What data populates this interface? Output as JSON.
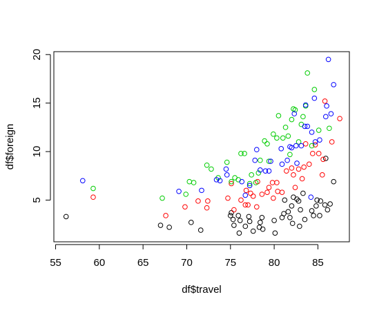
{
  "chart_data": {
    "type": "scatter",
    "title": "",
    "xlabel": "df$travel",
    "ylabel": "df$foreign",
    "xlim": [
      54.8,
      88.6
    ],
    "ylim": [
      0.7,
      20.3
    ],
    "x_ticks": [
      55,
      60,
      65,
      70,
      75,
      80,
      85
    ],
    "y_ticks": [
      5,
      10,
      15,
      20
    ],
    "x_tick_labels": [
      "55",
      "60",
      "65",
      "70",
      "75",
      "80",
      "85"
    ],
    "y_tick_labels": [
      "5",
      "10",
      "15",
      "20"
    ],
    "grid": false,
    "legend": "none",
    "marker": "open-circle",
    "series": [
      {
        "color": "#000000",
        "points": [
          [
            56.2,
            3.3
          ],
          [
            67.0,
            2.4
          ],
          [
            68.0,
            2.2
          ],
          [
            70.5,
            2.7
          ],
          [
            71.6,
            1.9
          ],
          [
            75.0,
            3.4
          ],
          [
            75.1,
            3.7
          ],
          [
            75.3,
            3.0
          ],
          [
            75.4,
            2.4
          ],
          [
            75.9,
            3.4
          ],
          [
            76.0,
            1.6
          ],
          [
            76.1,
            2.9
          ],
          [
            76.7,
            2.3
          ],
          [
            77.1,
            3.3
          ],
          [
            77.2,
            2.8
          ],
          [
            77.6,
            1.8
          ],
          [
            78.3,
            2.2
          ],
          [
            78.4,
            2.7
          ],
          [
            78.6,
            3.2
          ],
          [
            78.7,
            2.0
          ],
          [
            80.0,
            2.9
          ],
          [
            80.1,
            1.6
          ],
          [
            80.9,
            3.2
          ],
          [
            81.1,
            3.6
          ],
          [
            81.2,
            5.0
          ],
          [
            81.6,
            3.8
          ],
          [
            81.8,
            3.2
          ],
          [
            82.0,
            4.4
          ],
          [
            82.1,
            2.6
          ],
          [
            82.2,
            5.3
          ],
          [
            82.6,
            5.1
          ],
          [
            82.8,
            4.9
          ],
          [
            82.9,
            2.3
          ],
          [
            83.0,
            4.0
          ],
          [
            83.3,
            5.7
          ],
          [
            83.5,
            3.0
          ],
          [
            84.3,
            3.9
          ],
          [
            84.5,
            3.4
          ],
          [
            84.8,
            4.4
          ],
          [
            84.9,
            5.0
          ],
          [
            85.2,
            3.4
          ],
          [
            85.3,
            4.9
          ],
          [
            85.8,
            4.5
          ],
          [
            86.1,
            4.0
          ],
          [
            86.4,
            4.6
          ],
          [
            86.8,
            6.9
          ],
          [
            85.9,
            9.3
          ]
        ]
      },
      {
        "color": "#ff0000",
        "points": [
          [
            59.3,
            5.3
          ],
          [
            67.6,
            3.4
          ],
          [
            69.8,
            4.3
          ],
          [
            71.3,
            4.9
          ],
          [
            72.3,
            4.2
          ],
          [
            72.4,
            4.9
          ],
          [
            74.7,
            5.2
          ],
          [
            75.1,
            6.7
          ],
          [
            75.4,
            4.0
          ],
          [
            76.2,
            5.0
          ],
          [
            76.7,
            4.5
          ],
          [
            76.8,
            6.0
          ],
          [
            77.0,
            4.5
          ],
          [
            77.3,
            5.7
          ],
          [
            77.6,
            5.4
          ],
          [
            78.0,
            4.3
          ],
          [
            78.1,
            6.9
          ],
          [
            78.6,
            5.6
          ],
          [
            79.2,
            5.8
          ],
          [
            79.4,
            6.3
          ],
          [
            79.8,
            6.8
          ],
          [
            79.9,
            5.2
          ],
          [
            80.3,
            6.8
          ],
          [
            80.4,
            5.9
          ],
          [
            80.9,
            5.8
          ],
          [
            81.4,
            8.0
          ],
          [
            82.0,
            8.3
          ],
          [
            82.2,
            7.6
          ],
          [
            82.4,
            6.3
          ],
          [
            82.8,
            8.2
          ],
          [
            83.2,
            7.2
          ],
          [
            83.4,
            8.4
          ],
          [
            83.6,
            10.8
          ],
          [
            84.0,
            8.7
          ],
          [
            84.4,
            9.8
          ],
          [
            84.7,
            10.7
          ],
          [
            85.1,
            9.8
          ],
          [
            85.5,
            7.6
          ],
          [
            85.6,
            9.2
          ],
          [
            85.8,
            15.2
          ],
          [
            86.6,
            11.0
          ],
          [
            87.5,
            13.4
          ]
        ]
      },
      {
        "color": "#00cc00",
        "points": [
          [
            59.3,
            6.2
          ],
          [
            67.2,
            5.2
          ],
          [
            69.9,
            5.6
          ],
          [
            70.3,
            6.9
          ],
          [
            70.8,
            6.8
          ],
          [
            72.3,
            8.6
          ],
          [
            72.8,
            8.2
          ],
          [
            73.6,
            7.3
          ],
          [
            74.6,
            8.9
          ],
          [
            75.1,
            6.9
          ],
          [
            75.5,
            7.3
          ],
          [
            75.9,
            7.1
          ],
          [
            76.2,
            9.8
          ],
          [
            76.6,
            9.8
          ],
          [
            77.2,
            6.7
          ],
          [
            77.4,
            7.6
          ],
          [
            77.9,
            6.8
          ],
          [
            78.2,
            7.8
          ],
          [
            78.4,
            9.1
          ],
          [
            78.9,
            11.1
          ],
          [
            79.2,
            10.8
          ],
          [
            79.4,
            9.0
          ],
          [
            79.9,
            11.8
          ],
          [
            80.3,
            11.4
          ],
          [
            80.5,
            13.7
          ],
          [
            81.0,
            11.4
          ],
          [
            81.3,
            12.5
          ],
          [
            81.6,
            11.6
          ],
          [
            81.8,
            9.7
          ],
          [
            82.0,
            13.3
          ],
          [
            82.2,
            14.4
          ],
          [
            82.4,
            14.3
          ],
          [
            82.8,
            11.0
          ],
          [
            83.1,
            12.8
          ],
          [
            83.3,
            13.6
          ],
          [
            83.6,
            14.7
          ],
          [
            83.8,
            18.1
          ],
          [
            84.3,
            10.6
          ],
          [
            84.6,
            16.4
          ],
          [
            85.1,
            12.2
          ],
          [
            86.3,
            12.4
          ]
        ]
      },
      {
        "color": "#0000ff",
        "points": [
          [
            58.1,
            7.0
          ],
          [
            69.1,
            5.9
          ],
          [
            71.7,
            6.0
          ],
          [
            73.4,
            7.1
          ],
          [
            73.8,
            7.0
          ],
          [
            74.5,
            8.2
          ],
          [
            74.6,
            7.6
          ],
          [
            76.3,
            6.9
          ],
          [
            76.7,
            5.5
          ],
          [
            77.2,
            6.5
          ],
          [
            77.8,
            9.1
          ],
          [
            78.0,
            10.2
          ],
          [
            78.4,
            8.1
          ],
          [
            79.0,
            8.0
          ],
          [
            79.4,
            8.0
          ],
          [
            79.6,
            9.0
          ],
          [
            80.8,
            10.3
          ],
          [
            80.9,
            8.7
          ],
          [
            81.5,
            9.1
          ],
          [
            81.8,
            10.5
          ],
          [
            82.0,
            10.4
          ],
          [
            82.3,
            13.9
          ],
          [
            82.5,
            10.6
          ],
          [
            82.6,
            8.8
          ],
          [
            83.1,
            10.6
          ],
          [
            83.5,
            12.6
          ],
          [
            83.6,
            14.8
          ],
          [
            83.8,
            12.6
          ],
          [
            84.3,
            12.0
          ],
          [
            84.6,
            15.5
          ],
          [
            84.7,
            11.0
          ],
          [
            85.2,
            11.2
          ],
          [
            85.9,
            13.6
          ],
          [
            86.0,
            14.7
          ],
          [
            86.2,
            19.5
          ],
          [
            86.5,
            13.9
          ],
          [
            86.8,
            16.9
          ],
          [
            84.2,
            5.3
          ]
        ]
      }
    ]
  }
}
